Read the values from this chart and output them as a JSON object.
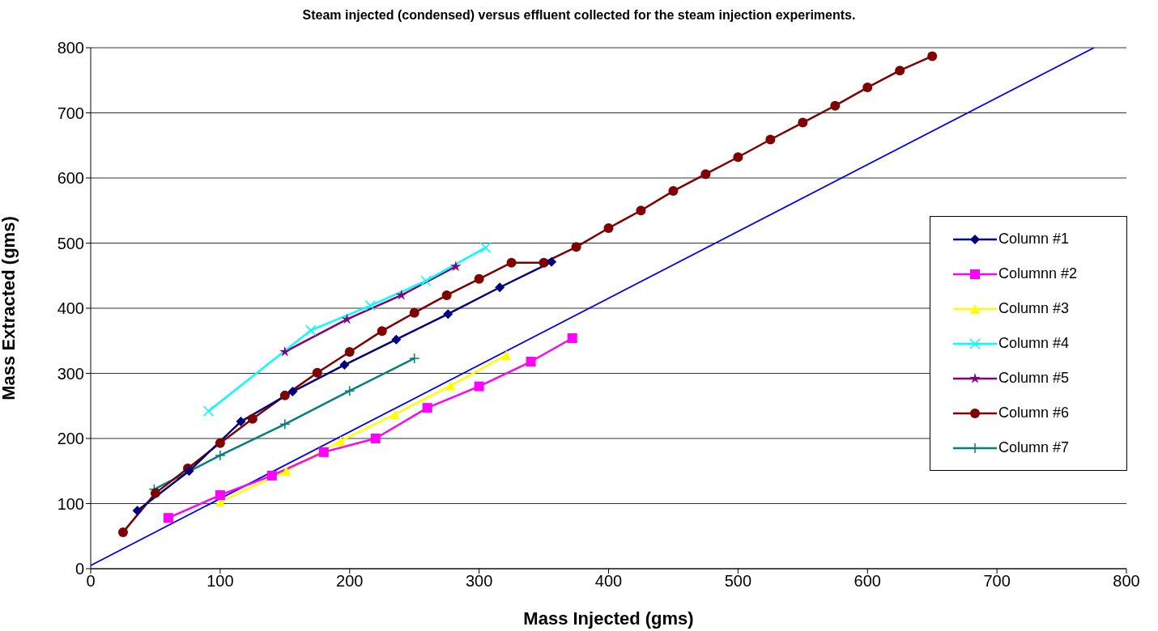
{
  "chart_data": {
    "type": "line",
    "title": "Steam injected (condensed) versus effluent collected for the steam injection experiments.",
    "xlabel": "Mass Injected (gms)",
    "ylabel": "Mass Extracted (gms)",
    "xlim": [
      0,
      800
    ],
    "xticks": [
      0,
      100,
      200,
      300,
      400,
      500,
      600,
      700,
      800
    ],
    "ylim": [
      0,
      800
    ],
    "yticks": [
      0,
      100,
      200,
      300,
      400,
      500,
      600,
      700,
      800
    ],
    "grid": "y",
    "legend": "right",
    "series": [
      {
        "name": "Column #1",
        "color": "#000080",
        "marker": "diamond",
        "x": [
          36,
          76,
          116,
          156,
          196,
          236,
          276,
          316,
          356
        ],
        "values": [
          89,
          150,
          226,
          272,
          313,
          352,
          391,
          432,
          471
        ]
      },
      {
        "name": "Columnn #2",
        "color": "#ff00ff",
        "marker": "square",
        "x": [
          60,
          100,
          140,
          180,
          220,
          260,
          300,
          340,
          372
        ],
        "values": [
          78,
          113,
          143,
          179,
          200,
          247,
          280,
          318,
          354
        ]
      },
      {
        "name": "Column #3",
        "color": "#ffff00",
        "marker": "triangle",
        "x": [
          100,
          151,
          193,
          235,
          278,
          321
        ],
        "values": [
          103,
          150,
          196,
          237,
          281,
          328
        ]
      },
      {
        "name": "Column #4",
        "color": "#00ffff",
        "marker": "cross",
        "x": [
          91,
          170,
          216,
          259,
          305
        ],
        "values": [
          242,
          366,
          404,
          442,
          493
        ]
      },
      {
        "name": "Column #5",
        "color": "#800080",
        "marker": "star",
        "x": [
          150,
          198,
          240,
          282
        ],
        "values": [
          333,
          383,
          420,
          464
        ]
      },
      {
        "name": "Column #6",
        "color": "#800000",
        "marker": "circle",
        "x": [
          25,
          50,
          75,
          100,
          125,
          150,
          175,
          200,
          225,
          250,
          275,
          300,
          325,
          350,
          375,
          400,
          425,
          450,
          475,
          500,
          525,
          550,
          575,
          600,
          625,
          650
        ],
        "values": [
          56,
          116,
          154,
          193,
          230,
          266,
          301,
          333,
          365,
          393,
          420,
          445,
          470,
          470,
          494,
          523,
          550,
          580,
          606,
          632,
          659,
          685,
          711,
          739,
          765,
          787
        ]
      },
      {
        "name": "Column #7",
        "color": "#008080",
        "marker": "plus",
        "x": [
          49,
          100,
          150,
          200,
          250
        ],
        "values": [
          122,
          174,
          222,
          273,
          323
        ]
      },
      {
        "color": "#0000ff",
        "marker": "none",
        "x": [
          0,
          775
        ],
        "values": [
          5,
          800
        ]
      }
    ]
  }
}
